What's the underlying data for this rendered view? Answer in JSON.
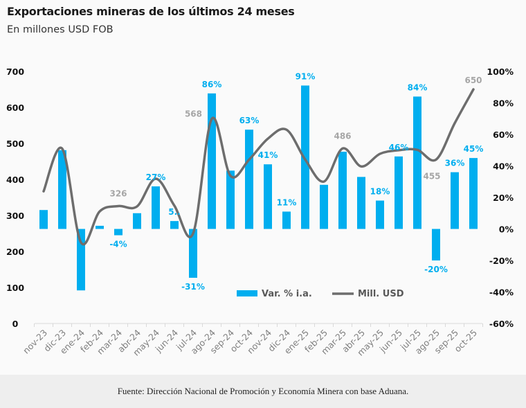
{
  "header": {
    "title": "Exportaciones mineras de los últimos 24 meses",
    "subtitle": "En millones USD FOB"
  },
  "footer": {
    "source": "Fuente: Dirección Nacional de Promoción y Economía Minera con base Aduana."
  },
  "chart_data": {
    "type": "bar",
    "categories": [
      "nov-23",
      "dic-23",
      "ene-24",
      "feb-24",
      "mar-24",
      "abr-24",
      "may-24",
      "jun-24",
      "jul-24",
      "ago-24",
      "sep-24",
      "oct-24",
      "nov-24",
      "dic-24",
      "ene-25",
      "feb-25",
      "mar-25",
      "abr-25",
      "may-25",
      "jun-25",
      "jul-25",
      "ago-25",
      "sep-25",
      "oct-25"
    ],
    "left_axis": {
      "ylim": [
        0,
        700
      ],
      "ticks": [
        "0",
        "100",
        "200",
        "300",
        "400",
        "500",
        "600",
        "700"
      ]
    },
    "right_axis": {
      "ylim": [
        -60,
        100
      ],
      "ticks": [
        "-60%",
        "-40%",
        "-20%",
        "0%",
        "20%",
        "40%",
        "60%",
        "80%",
        "100%"
      ]
    },
    "grid": false,
    "legend_position": "bottom-center",
    "series": [
      {
        "name": "Var. % i.a.",
        "type": "bar",
        "axis": "right",
        "color": "#00aeef",
        "values": [
          12,
          50,
          -39,
          2,
          -4,
          10,
          27,
          5,
          -31,
          86,
          37,
          63,
          41,
          11,
          91,
          28,
          49,
          33,
          18,
          46,
          84,
          -20,
          36,
          45
        ],
        "labels": [
          "",
          "",
          "",
          "",
          "-4%",
          "",
          "27%",
          "5..",
          "-31%",
          "86%",
          "",
          "63%",
          "41%",
          "11%",
          "91%",
          "",
          "",
          "",
          "18%",
          "46%",
          "84%",
          "-20%",
          "36%",
          "45%"
        ]
      },
      {
        "name": "Mill. USD",
        "type": "line",
        "axis": "left",
        "color": "#6d6d6d",
        "values": [
          367,
          485,
          225,
          311,
          326,
          325,
          402,
          327,
          250,
          568,
          410,
          455,
          513,
          538,
          455,
          394,
          486,
          436,
          471,
          481,
          482,
          455,
          556,
          650
        ],
        "labels": [
          "",
          "",
          "",
          "",
          "326",
          "",
          "",
          "",
          "",
          "568",
          "",
          "",
          "",
          "",
          "",
          "",
          "486",
          "",
          "",
          "",
          "",
          "455",
          "",
          "650"
        ]
      }
    ]
  }
}
